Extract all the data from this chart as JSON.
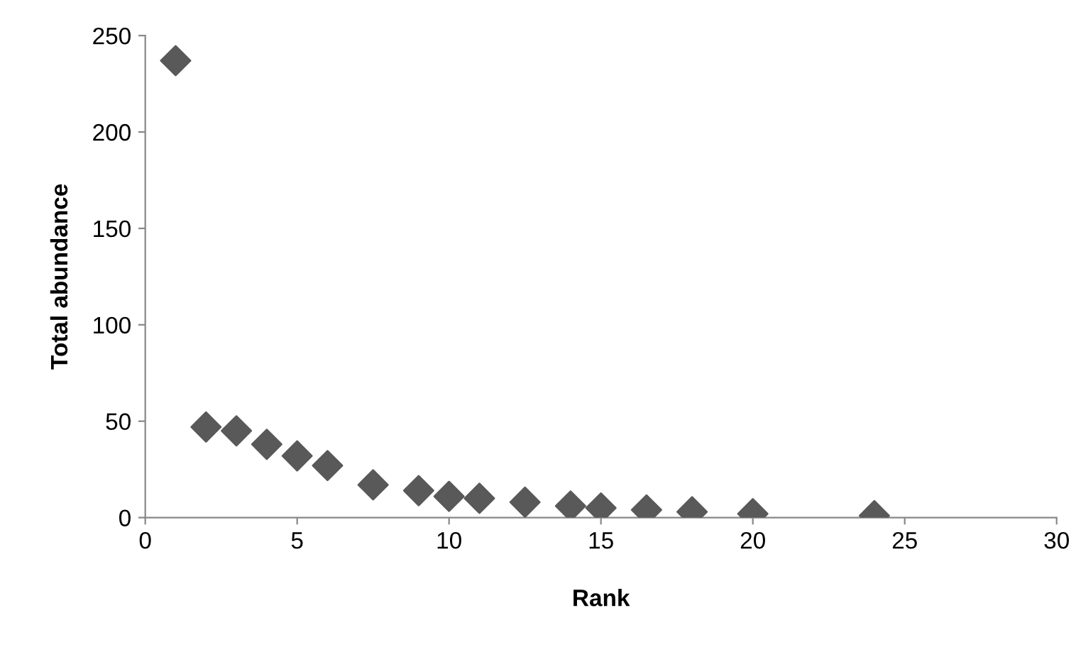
{
  "chart_data": {
    "type": "scatter",
    "xlabel": "Rank",
    "ylabel": "Total abundance",
    "x": [
      1,
      2,
      3,
      4,
      5,
      6,
      7.5,
      9,
      10,
      11,
      12.5,
      14,
      15,
      16.5,
      18,
      20,
      24
    ],
    "series": [
      {
        "color": "#595959",
        "values": [
          237,
          47,
          45,
          38,
          32,
          27,
          17,
          14,
          11,
          10,
          8,
          6,
          5,
          4,
          3,
          2,
          1
        ]
      }
    ],
    "xlim": [
      0,
      30
    ],
    "xticks": [
      0,
      5,
      10,
      15,
      20,
      25,
      30
    ],
    "ylim": [
      0,
      250
    ],
    "yticks": [
      0,
      50,
      100,
      150,
      200,
      250
    ],
    "marker": "diamond",
    "grid": false,
    "legend": false
  }
}
